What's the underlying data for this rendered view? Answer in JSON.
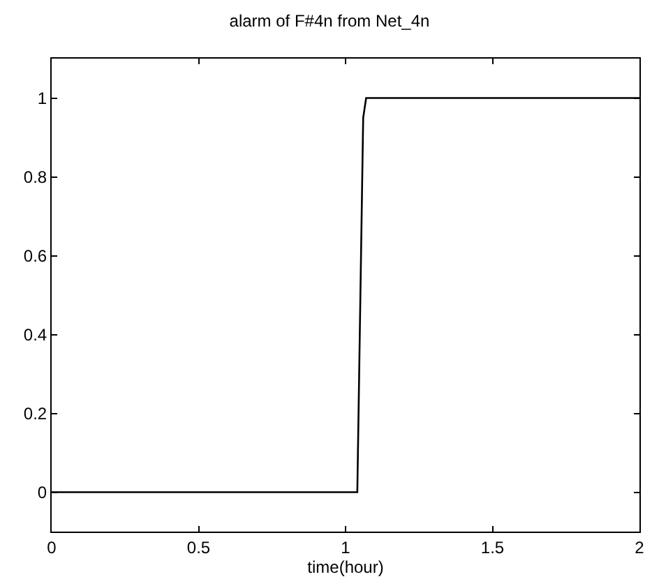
{
  "chart_data": {
    "type": "line",
    "title": "alarm of F#4n from Net_4n",
    "xlabel": "time(hour)",
    "x": [
      0,
      1.04,
      1.06,
      1.07,
      2
    ],
    "series": [
      {
        "color": "#000000",
        "values": [
          0,
          0,
          0.95,
          1,
          1
        ]
      }
    ],
    "xlim": [
      0,
      2
    ],
    "xticks": [
      0,
      0.5,
      1,
      1.5,
      2
    ],
    "ylim": [
      -0.1,
      1.1
    ],
    "yticks": [
      0,
      0.2,
      0.4,
      0.6,
      0.8,
      1
    ],
    "marker": "none",
    "line_style": "solid"
  }
}
